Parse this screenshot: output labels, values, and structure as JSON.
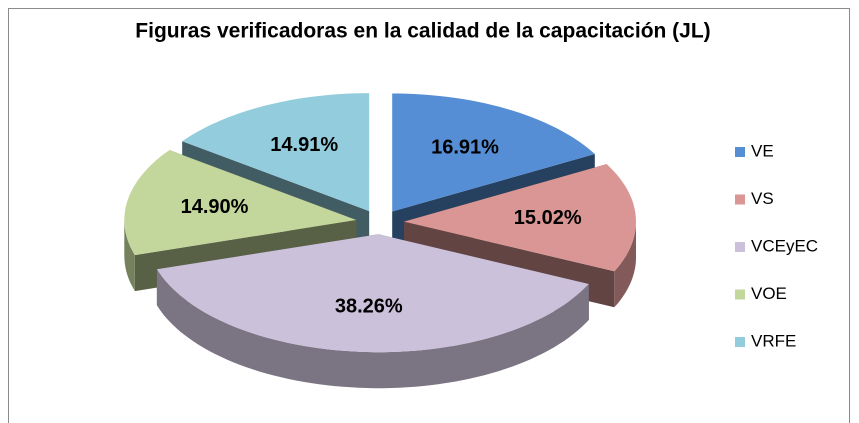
{
  "chart_data": {
    "type": "pie",
    "title": "Figuras verificadoras en la calidad de la capacitación (JL)",
    "categories": [
      "VE",
      "VS",
      "VCEyEC",
      "VOE",
      "VRFE"
    ],
    "values": [
      16.91,
      15.02,
      38.26,
      14.9,
      14.91
    ],
    "value_labels": [
      "16.91%",
      "15.02%",
      "38.26%",
      "14.90%",
      "14.91%"
    ],
    "colors": [
      "#558ed5",
      "#d99694",
      "#ccc1da",
      "#c3d69b",
      "#93cddd"
    ],
    "legend": "right"
  }
}
